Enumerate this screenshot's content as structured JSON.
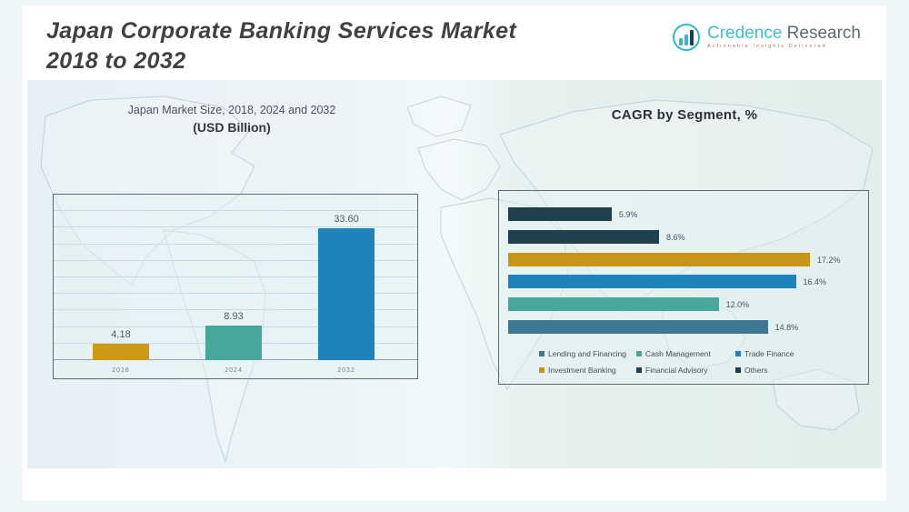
{
  "header": {
    "title_line1": "Japan Corporate Banking Services Market",
    "title_line2": "2018 to 2032"
  },
  "logo": {
    "brand_primary": "Credence",
    "brand_secondary": "Research",
    "tagline": "Actionable Insights Delivered",
    "icon": "bar-chart-circle-icon",
    "brand_color": "#3fc0cb",
    "dark_color": "#1d3d52"
  },
  "market_chart": {
    "title": "Japan Market Size, 2018, 2024 and 2032",
    "subtitle": "(USD Billion)",
    "bars": [
      {
        "year": "2018",
        "value": 4.18,
        "value_label": "4.18",
        "color": "#CE9A16"
      },
      {
        "year": "2024",
        "value": 8.93,
        "value_label": "8.93",
        "color": "#47A79A"
      },
      {
        "year": "2032",
        "value": 33.6,
        "value_label": "33.60",
        "color": "#1E83B8"
      }
    ]
  },
  "cagr_chart": {
    "title": "CAGR by Segment, %",
    "bars_top_to_bottom": [
      {
        "segment": "Others",
        "value": 5.9,
        "value_label": "5.9%",
        "color": "#20404E"
      },
      {
        "segment": "Financial Advisory",
        "value": 8.6,
        "value_label": "8.6%",
        "color": "#20404E"
      },
      {
        "segment": "Investment Banking",
        "value": 17.2,
        "value_label": "17.2%",
        "color": "#C79418"
      },
      {
        "segment": "Trade Finance",
        "value": 16.4,
        "value_label": "16.4%",
        "color": "#1E83B8"
      },
      {
        "segment": "Cash Management",
        "value": 12.0,
        "value_label": "12.0%",
        "color": "#47A79A"
      },
      {
        "segment": "Lending and Financing",
        "value": 14.8,
        "value_label": "14.8%",
        "color": "#3E7894"
      }
    ],
    "legend": [
      {
        "label": "Lending and Financing",
        "color": "#3E7894"
      },
      {
        "label": "Cash Management",
        "color": "#47A79A"
      },
      {
        "label": "Trade Finance",
        "color": "#1E83B8"
      },
      {
        "label": "Investment Banking",
        "color": "#C79418"
      },
      {
        "label": "Financial Advisory",
        "color": "#20404E"
      },
      {
        "label": "Others",
        "color": "#20404E"
      }
    ]
  },
  "chart_data": [
    {
      "type": "bar",
      "title": "Japan Market Size, 2018, 2024 and 2032 (USD Billion)",
      "categories": [
        "2018",
        "2024",
        "2032"
      ],
      "values": [
        4.18,
        8.93,
        33.6
      ],
      "data_labels": [
        "4.18",
        "8.93",
        "33.60"
      ],
      "ylabel": "USD Billion",
      "ylim": [
        0,
        36
      ],
      "grid": true,
      "bar_colors": [
        "#CE9A16",
        "#47A79A",
        "#1E83B8"
      ]
    },
    {
      "type": "bar",
      "orientation": "horizontal",
      "title": "CAGR by Segment, %",
      "categories": [
        "Lending and Financing",
        "Cash Management",
        "Trade Finance",
        "Investment Banking",
        "Financial Advisory",
        "Others"
      ],
      "values": [
        14.8,
        12.0,
        16.4,
        17.2,
        8.6,
        5.9
      ],
      "data_labels": [
        "14.8%",
        "12.0%",
        "16.4%",
        "17.2%",
        "8.6%",
        "5.9%"
      ],
      "xlim": [
        0,
        18
      ],
      "grid": false,
      "legend_position": "bottom",
      "bar_colors": [
        "#3E7894",
        "#47A79A",
        "#1E83B8",
        "#C79418",
        "#20404E",
        "#20404E"
      ]
    }
  ]
}
